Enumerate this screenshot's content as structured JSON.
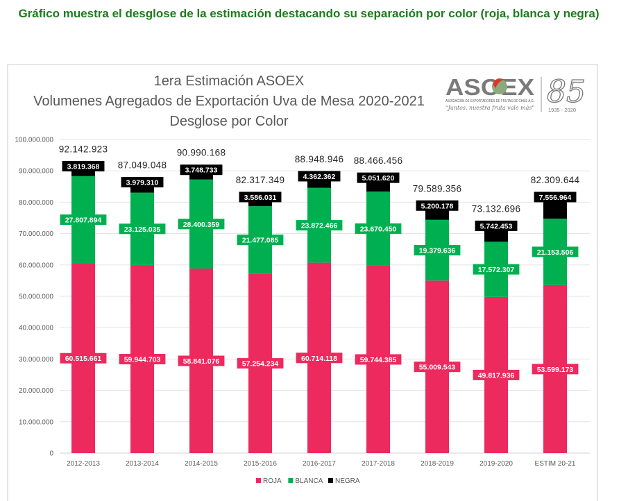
{
  "page": {
    "caption": "Gráfico muestra el desglose de la estimación  destacando su separación por color (roja, blanca y negra)"
  },
  "logo": {
    "brand": "ASOEX",
    "subtitle": "ASOCIACIÓN DE EXPORTADORES DE FRUTAS DE CHILE A.G.",
    "slogan": "\"Juntos, nuestra fruta vale más\"",
    "anniversary": "85",
    "years": "1935 - 2020"
  },
  "chart_data": {
    "type": "bar",
    "stacked": true,
    "title": [
      "1era Estimación ASOEX",
      "Volumenes Agregados de Exportación Uva de Mesa 2020-2021",
      "Desglose por Color"
    ],
    "xlabel": "",
    "ylabel": "",
    "ylim": [
      0,
      100000000
    ],
    "yticks": [
      0,
      10000000,
      20000000,
      30000000,
      40000000,
      50000000,
      60000000,
      70000000,
      80000000,
      90000000,
      100000000
    ],
    "ytick_labels": [
      "0",
      "10.000.000",
      "20.000.000",
      "30.000.000",
      "40.000.000",
      "50.000.000",
      "60.000.000",
      "70.000.000",
      "80.000.000",
      "90.000.000",
      "100.000.000"
    ],
    "grid": true,
    "legend_position": "bottom-center",
    "categories": [
      "2012-2013",
      "2013-2014",
      "2014-2015",
      "2015-2016",
      "2016-2017",
      "2017-2018",
      "2018-2019",
      "2019-2020",
      "ESTIM 20-21"
    ],
    "series": [
      {
        "name": "ROJA",
        "color": "#ec2a5e",
        "values": [
          60515661,
          59944703,
          58841076,
          57254234,
          60714118,
          59744385,
          55009543,
          49817936,
          53599173
        ],
        "labels": [
          "60.515.661",
          "59.944.703",
          "58.841.076",
          "57.254.234",
          "60.714.118",
          "59.744.385",
          "55.009.543",
          "49.817.936",
          "53.599.173"
        ]
      },
      {
        "name": "BLANCA",
        "color": "#00b050",
        "values": [
          27807894,
          23125035,
          28400359,
          21477085,
          23872466,
          23670450,
          19379636,
          17572307,
          21153506
        ],
        "labels": [
          "27.807.894",
          "23.125.035",
          "28.400.359",
          "21.477.085",
          "23.872.466",
          "23.670.450",
          "19.379.636",
          "17.572.307",
          "21.153.506"
        ]
      },
      {
        "name": "NEGRA",
        "color": "#000000",
        "values": [
          3819368,
          3979310,
          3748733,
          3586031,
          4362362,
          5051620,
          5200178,
          5742453,
          7556964
        ],
        "labels": [
          "3.819.368",
          "3.979.310",
          "3.748.733",
          "3.586.031",
          "4.362.362",
          "5.051.620",
          "5.200.178",
          "5.742.453",
          "7.556.964"
        ]
      }
    ],
    "totals": [
      92142923,
      87049048,
      90990168,
      82317349,
      88948946,
      88466456,
      79589356,
      73132696,
      82309644
    ],
    "total_labels": [
      "92.142.923",
      "87.049.048",
      "90.990.168",
      "82.317.349",
      "88.948.946",
      "88.466.456",
      "79.589.356",
      "73.132.696",
      "82.309.644"
    ]
  }
}
